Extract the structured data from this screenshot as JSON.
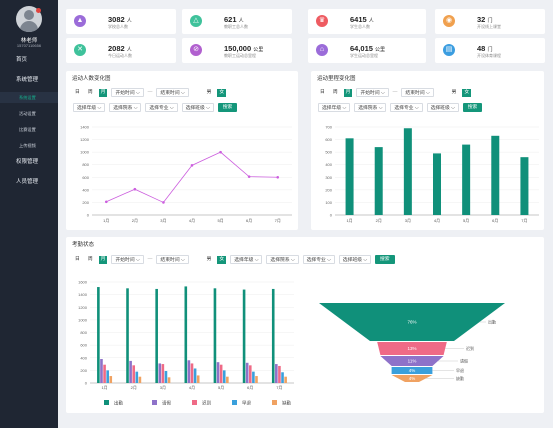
{
  "sidebar": {
    "user_name": "林老师",
    "user_phone": "15707110656",
    "nav": [
      {
        "label": "首页"
      },
      {
        "label": "系统管理"
      }
    ],
    "sub": [
      {
        "label": "系统设置"
      },
      {
        "label": "活动设置"
      },
      {
        "label": "比赛设置"
      },
      {
        "label": "上传视频"
      }
    ],
    "nav2": [
      {
        "label": "权限管理"
      },
      {
        "label": "人员管理"
      }
    ]
  },
  "stats": [
    {
      "value": "3082",
      "unit": "人",
      "label": "学校总人数",
      "icon": "mortarboard-icon",
      "color": "#9b6cd9"
    },
    {
      "value": "621",
      "unit": "人",
      "label": "教职工总人数",
      "icon": "teacher-icon",
      "color": "#3fc29b"
    },
    {
      "value": "6415",
      "unit": "人",
      "label": "学生总人数",
      "icon": "student-icon",
      "color": "#ee5b61"
    },
    {
      "value": "32",
      "unit": "门",
      "label": "开设线上课堂",
      "icon": "book-icon",
      "color": "#f0a04e"
    },
    {
      "value": "2082",
      "unit": "人",
      "label": "今日运动人数",
      "icon": "sport-icon",
      "color": "#3fc29b"
    },
    {
      "value": "150,000",
      "unit": "公里",
      "label": "教职工运动总里程",
      "icon": "route-icon",
      "color": "#b160cf"
    },
    {
      "value": "64,015",
      "unit": "公里",
      "label": "学生运动总里程",
      "icon": "runner-icon",
      "color": "#9b6cd9"
    },
    {
      "value": "48",
      "unit": "门",
      "label": "开设体育课程",
      "icon": "course-icon",
      "color": "#3b9de0"
    }
  ],
  "filters": {
    "day": "日",
    "week": "周",
    "month": "月",
    "start": "开始时间",
    "end": "结束时间",
    "male": "男",
    "female": "女",
    "grade": "选择年级",
    "dept": "选择院系",
    "major": "选择专业",
    "class": "选择班级",
    "search": "搜索",
    "dash": "—"
  },
  "panels": {
    "line_title": "运动人数变化图",
    "bar_title": "运动里程变化图",
    "attendance_title": "考勤状态"
  },
  "chart_data": [
    {
      "type": "line",
      "title": "运动人数变化图",
      "categories": [
        "1月",
        "2月",
        "3月",
        "4月",
        "5月",
        "6月",
        "7月"
      ],
      "values": [
        210,
        410,
        200,
        790,
        1000,
        610,
        600
      ],
      "ylim": [
        0,
        1400
      ],
      "yticks": [
        0,
        200,
        400,
        600,
        800,
        1000,
        1200,
        1400
      ],
      "color": "#cc5fde",
      "grid": true
    },
    {
      "type": "bar",
      "title": "运动里程变化图",
      "categories": [
        "1月",
        "2月",
        "3月",
        "4月",
        "5月",
        "6月",
        "7月"
      ],
      "values": [
        610,
        540,
        690,
        490,
        560,
        630,
        460
      ],
      "ylim": [
        0,
        700
      ],
      "yticks": [
        0,
        100,
        200,
        300,
        400,
        500,
        600,
        700
      ],
      "color": "#10907a",
      "grid": true
    },
    {
      "type": "bar",
      "title": "考勤状态",
      "categories": [
        "1月",
        "2月",
        "3月",
        "4月",
        "5月",
        "6月",
        "7月"
      ],
      "ylim": [
        0,
        1600
      ],
      "yticks": [
        0,
        200,
        400,
        600,
        800,
        1000,
        1200,
        1400,
        1600
      ],
      "series": [
        {
          "name": "出勤",
          "color": "#10907a",
          "values": [
            1520,
            1500,
            1490,
            1530,
            1500,
            1480,
            1490
          ]
        },
        {
          "name": "请假",
          "color": "#8e72c9",
          "values": [
            380,
            350,
            310,
            360,
            330,
            320,
            300
          ]
        },
        {
          "name": "迟到",
          "color": "#ef6a86",
          "values": [
            290,
            280,
            300,
            310,
            290,
            280,
            270
          ]
        },
        {
          "name": "早退",
          "color": "#3aa0dc",
          "values": [
            200,
            180,
            190,
            230,
            200,
            180,
            170
          ]
        },
        {
          "name": "缺勤",
          "color": "#f0a262",
          "values": [
            110,
            100,
            90,
            120,
            100,
            110,
            100
          ]
        }
      ],
      "legend": "bottom"
    },
    {
      "type": "funnel",
      "title": "考勤状态",
      "labels": [
        "出勤",
        "迟到",
        "请假",
        "早退",
        "缺勤"
      ],
      "values": [
        76,
        13,
        11,
        4,
        4
      ],
      "value_labels": [
        "76%",
        "13%",
        "11%",
        "4%",
        "4%"
      ],
      "colors": [
        "#10907a",
        "#ef6a86",
        "#8e72c9",
        "#3aa0dc",
        "#f0a262"
      ]
    }
  ]
}
